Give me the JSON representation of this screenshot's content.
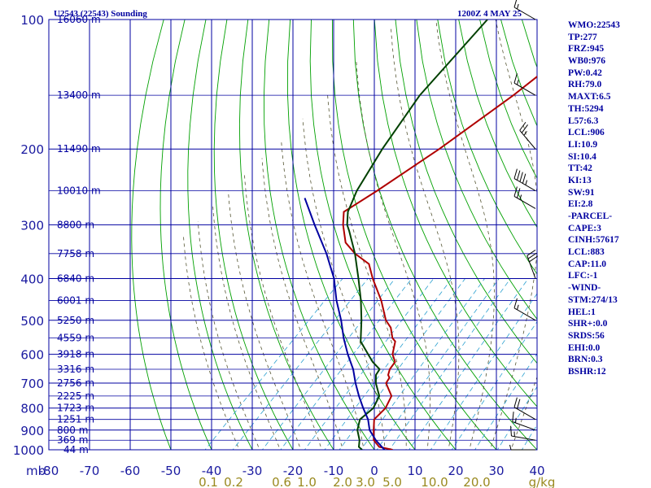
{
  "header": {
    "station": "U2543 (22543) Sounding",
    "time": "1200Z  4 MAY 25"
  },
  "indices": [
    "WMO:22543",
    "TP:277",
    "FRZ:945",
    "WB0:976",
    "PW:0.42",
    "RH:79.0",
    "MAXT:6.5",
    "TH:5294",
    "L57:6.3",
    "LCL:906",
    "LI:10.9",
    "SI:10.4",
    "TT:42",
    "KI:13",
    "SW:91",
    "EI:2.8",
    "-PARCEL-",
    "CAPE:3",
    "CINH:57617",
    "LCL:883",
    "CAP:11.0",
    "LFC:-1",
    "-WIND-",
    "STM:274/13",
    "HEL:1",
    "SHR+:0.0",
    "SRDS:56",
    "EHI:0.0",
    "BRN:0.3",
    "BSHR:12"
  ],
  "chart_data": {
    "type": "line",
    "title": "U2543 (22543) Sounding",
    "subtitle": "1200Z  4 MAY 25",
    "x_axis_unit": "",
    "y_axis_unit": "mb",
    "x_ticks": [
      "-80",
      "-70",
      "-60",
      "-50",
      "-40",
      "-30",
      "-20",
      "-10",
      "0",
      "10",
      "20",
      "30",
      "40"
    ],
    "y_ticks": [
      "100",
      "200",
      "300",
      "400",
      "500",
      "600",
      "700",
      "800",
      "900",
      "1000"
    ],
    "mixing_ratio_labels": [
      "0.1",
      "0.2",
      "0.6",
      "1.0",
      "2.0",
      "3.0",
      "5.0",
      "10.0",
      "20.0",
      "g/kg"
    ],
    "height_labels": [
      {
        "p": 100,
        "label": "16060 m"
      },
      {
        "p": 150,
        "label": "13400 m"
      },
      {
        "p": 200,
        "label": "11490 m"
      },
      {
        "p": 250,
        "label": "10010 m"
      },
      {
        "p": 300,
        "label": "8800 m"
      },
      {
        "p": 350,
        "label": "7758 m"
      },
      {
        "p": 400,
        "label": "6840 m"
      },
      {
        "p": 450,
        "label": "6001 m"
      },
      {
        "p": 500,
        "label": "5250 m"
      },
      {
        "p": 550,
        "label": "4559 m"
      },
      {
        "p": 600,
        "label": "3918 m"
      },
      {
        "p": 650,
        "label": "3316 m"
      },
      {
        "p": 700,
        "label": "2756 m"
      },
      {
        "p": 750,
        "label": "2225 m"
      },
      {
        "p": 800,
        "label": "1723 m"
      },
      {
        "p": 850,
        "label": "1251 m"
      },
      {
        "p": 900,
        "label": "800 m"
      },
      {
        "p": 950,
        "label": "369 m"
      },
      {
        "p": 1000,
        "label": "44 m"
      }
    ],
    "series": [
      {
        "color": "#b00000",
        "points": [
          [
            1000,
            4.5
          ],
          [
            985,
            0.5
          ],
          [
            950,
            -2.5
          ],
          [
            900,
            -5
          ],
          [
            850,
            -7.5
          ],
          [
            800,
            -7.5
          ],
          [
            750,
            -9
          ],
          [
            700,
            -13.5
          ],
          [
            680,
            -14
          ],
          [
            670,
            -15
          ],
          [
            650,
            -16
          ],
          [
            625,
            -16.5
          ],
          [
            600,
            -19
          ],
          [
            560,
            -21.5
          ],
          [
            550,
            -23
          ],
          [
            520,
            -26
          ],
          [
            500,
            -29
          ],
          [
            450,
            -35
          ],
          [
            400,
            -42.5
          ],
          [
            370,
            -47
          ],
          [
            350,
            -53
          ],
          [
            330,
            -58
          ],
          [
            300,
            -63
          ],
          [
            280,
            -66
          ],
          [
            250,
            -63
          ],
          [
            200,
            -58
          ],
          [
            150,
            -53
          ],
          [
            100,
            -48
          ]
        ]
      },
      {
        "color": "#004000",
        "points": [
          [
            1000,
            -3
          ],
          [
            985,
            -4.5
          ],
          [
            950,
            -6
          ],
          [
            900,
            -9
          ],
          [
            850,
            -11
          ],
          [
            800,
            -10.5
          ],
          [
            750,
            -12
          ],
          [
            700,
            -16
          ],
          [
            670,
            -18
          ],
          [
            650,
            -18.5
          ],
          [
            625,
            -22
          ],
          [
            600,
            -25
          ],
          [
            560,
            -30
          ],
          [
            500,
            -35
          ],
          [
            450,
            -40
          ],
          [
            400,
            -46
          ],
          [
            350,
            -53
          ],
          [
            310,
            -60
          ],
          [
            300,
            -62
          ],
          [
            280,
            -65
          ],
          [
            250,
            -68
          ],
          [
            200,
            -72
          ],
          [
            150,
            -76
          ],
          [
            100,
            -78
          ]
        ]
      },
      {
        "color": "#0000a0",
        "points": [
          [
            1000,
            2.5
          ],
          [
            950,
            -2
          ],
          [
            900,
            -6
          ],
          [
            850,
            -9
          ],
          [
            800,
            -13
          ],
          [
            750,
            -17
          ],
          [
            700,
            -21
          ],
          [
            650,
            -25
          ],
          [
            600,
            -30
          ],
          [
            550,
            -35
          ],
          [
            500,
            -40
          ],
          [
            450,
            -46
          ],
          [
            400,
            -52
          ],
          [
            350,
            -60
          ],
          [
            300,
            -70
          ],
          [
            260,
            -79
          ]
        ]
      }
    ],
    "winds": [
      {
        "p": 100,
        "dir": 300,
        "spd": 15
      },
      {
        "p": 150,
        "dir": 300,
        "spd": 15
      },
      {
        "p": 200,
        "dir": 320,
        "spd": 25
      },
      {
        "p": 250,
        "dir": 300,
        "spd": 45
      },
      {
        "p": 275,
        "dir": 300,
        "spd": 25
      },
      {
        "p": 400,
        "dir": 340,
        "spd": 30
      },
      {
        "p": 500,
        "dir": 300,
        "spd": 15
      },
      {
        "p": 850,
        "dir": 300,
        "spd": 20
      },
      {
        "p": 900,
        "dir": 290,
        "spd": 15
      },
      {
        "p": 950,
        "dir": 280,
        "spd": 15
      },
      {
        "p": 1000,
        "dir": 270,
        "spd": 5
      }
    ],
    "ylim": [
      100,
      1000
    ],
    "xlim": [
      -80,
      40
    ],
    "log_pressure": true,
    "skew_t": true,
    "grid": true
  }
}
